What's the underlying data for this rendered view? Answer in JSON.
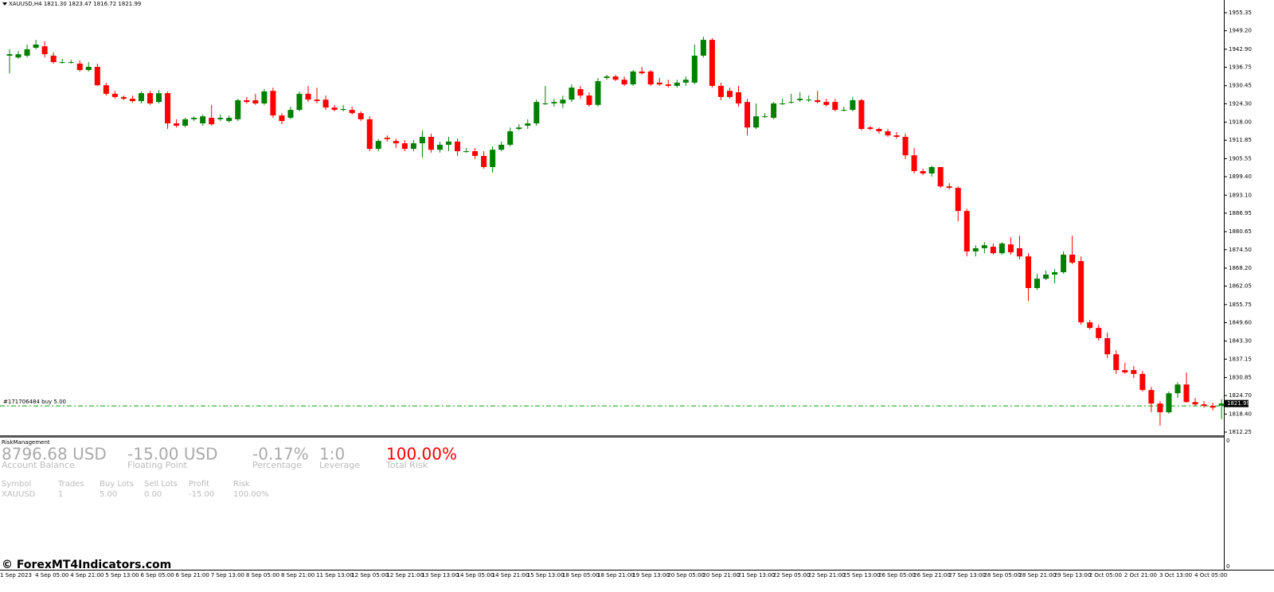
{
  "chart_data": {
    "type": "candlestick",
    "title": "XAUUSD,H4",
    "ohlc_labels": [
      "1821.30",
      "1823.47",
      "1816.72",
      "1821.99"
    ],
    "up_color": "#008000",
    "down_color": "#ff0000",
    "categories": [
      "1 Sep 2023",
      null,
      null,
      null,
      "4 Sep 05:00",
      null,
      null,
      null,
      "4 Sep 21:00",
      null,
      null,
      null,
      "5 Sep 13:00",
      null,
      null,
      null,
      "6 Sep 05:00",
      null,
      null,
      null,
      "6 Sep 21:00",
      null,
      null,
      null,
      "7 Sep 13:00",
      null,
      null,
      null,
      "8 Sep 05:00",
      null,
      null,
      null,
      "8 Sep 21:00",
      null,
      null,
      null,
      "11 Sep 13:00",
      null,
      null,
      null,
      "12 Sep 05:00",
      null,
      null,
      null,
      "12 Sep 21:00",
      null,
      null,
      null,
      "13 Sep 13:00",
      null,
      null,
      null,
      "14 Sep 05:00",
      null,
      null,
      null,
      "14 Sep 21:00",
      null,
      null,
      null,
      "15 Sep 13:00",
      null,
      null,
      null,
      "18 Sep 05:00",
      null,
      null,
      null,
      "18 Sep 21:00",
      null,
      null,
      null,
      "19 Sep 13:00",
      null,
      null,
      null,
      "20 Sep 05:00",
      null,
      null,
      null,
      "20 Sep 21:00",
      null,
      null,
      null,
      "21 Sep 13:00",
      null,
      null,
      null,
      "22 Sep 05:00",
      null,
      null,
      null,
      "22 Sep 21:00",
      null,
      null,
      null,
      "25 Sep 13:00",
      null,
      null,
      null,
      "26 Sep 05:00",
      null,
      null,
      null,
      "26 Sep 21:00",
      null,
      null,
      null,
      "27 Sep 13:00",
      null,
      null,
      null,
      "28 Sep 05:00",
      null,
      null,
      null,
      "28 Sep 21:00",
      null,
      null,
      null,
      "29 Sep 13:00",
      null,
      null,
      null,
      "2 Oct 05:00",
      null,
      null,
      null,
      "2 Oct 21:00",
      null,
      null,
      null,
      "3 Oct 13:00",
      null,
      null,
      null,
      "4 Oct 05:00",
      null,
      null
    ],
    "open": [
      1940.7,
      1940.1,
      1940.7,
      1943.4,
      1943.9,
      1940.7,
      1938.5,
      1938.5,
      1938.0,
      1935.8,
      1936.9,
      1930.6,
      1927.7,
      1926.6,
      1926.0,
      1925.2,
      1927.9,
      1924.9,
      1927.9,
      1917.6,
      1916.8,
      1919.0,
      1917.6,
      1919.5,
      1919.0,
      1918.4,
      1919.0,
      1925.5,
      1925.5,
      1924.4,
      1928.7,
      1920.3,
      1919.5,
      1922.2,
      1927.7,
      1925.7,
      1925.7,
      1923.0,
      1922.2,
      1922.2,
      1921.1,
      1919.0,
      1908.9,
      1912.7,
      1911.6,
      1910.8,
      1908.9,
      1910.8,
      1913.0,
      1908.6,
      1910.3,
      1911.4,
      1908.1,
      1908.1,
      1906.5,
      1902.7,
      1908.6,
      1910.3,
      1915.7,
      1916.8,
      1917.6,
      1924.4,
      1924.4,
      1924.4,
      1925.7,
      1929.3,
      1927.1,
      1923.9,
      1933.1,
      1933.6,
      1932.5,
      1930.9,
      1935.3,
      1935.3,
      1931.5,
      1930.9,
      1930.4,
      1931.5,
      1931.5,
      1940.7,
      1946.1,
      1930.4,
      1928.7,
      1928.2,
      1924.9,
      1916.2,
      1920.0,
      1919.5,
      1924.4,
      1924.9,
      1925.5,
      1925.7,
      1925.5,
      1924.9,
      1924.9,
      1922.2,
      1922.2,
      1925.5,
      1916.2,
      1915.7,
      1914.9,
      1913.5,
      1913.0,
      1906.7,
      1901.3,
      1900.5,
      1902.7,
      1896.1,
      1895.6,
      1887.7,
      1873.9,
      1875.0,
      1875.5,
      1873.3,
      1876.3,
      1875.0,
      1872.2,
      1861.4,
      1864.6,
      1866.0,
      1866.8,
      1872.8,
      1870.6,
      1849.7,
      1847.8,
      1844.3,
      1838.8,
      1833.4,
      1833.4,
      1832.1,
      1826.6,
      1822.0,
      1819.0,
      1825.5,
      1828.5,
      1822.5,
      1821.7,
      1821.2,
      1821.3
    ],
    "high": [
      1942.9,
      1942.3,
      1944.5,
      1946.1,
      1945.6,
      1941.8,
      1939.6,
      1939.3,
      1939.1,
      1938.5,
      1938.0,
      1931.5,
      1928.7,
      1927.1,
      1927.1,
      1928.5,
      1928.7,
      1929.0,
      1928.5,
      1919.0,
      1919.5,
      1920.0,
      1920.6,
      1923.9,
      1920.6,
      1920.3,
      1926.0,
      1926.6,
      1927.7,
      1929.3,
      1929.8,
      1921.1,
      1923.3,
      1928.5,
      1930.4,
      1929.8,
      1927.1,
      1923.9,
      1923.9,
      1923.3,
      1921.7,
      1920.0,
      1912.2,
      1913.5,
      1912.4,
      1911.9,
      1911.9,
      1915.2,
      1914.1,
      1911.4,
      1913.0,
      1912.4,
      1909.2,
      1909.2,
      1908.1,
      1909.7,
      1911.4,
      1916.2,
      1917.3,
      1919.0,
      1925.7,
      1930.4,
      1926.0,
      1927.1,
      1930.9,
      1930.4,
      1928.2,
      1933.1,
      1934.2,
      1934.2,
      1933.6,
      1935.8,
      1936.9,
      1935.8,
      1933.1,
      1932.5,
      1932.5,
      1933.6,
      1944.5,
      1947.2,
      1946.7,
      1931.5,
      1929.8,
      1930.4,
      1926.0,
      1924.4,
      1921.1,
      1924.9,
      1926.0,
      1927.7,
      1928.2,
      1927.1,
      1928.7,
      1926.0,
      1926.0,
      1923.3,
      1926.6,
      1926.0,
      1916.8,
      1916.2,
      1915.7,
      1914.6,
      1914.1,
      1909.2,
      1902.1,
      1903.2,
      1902.7,
      1897.2,
      1896.1,
      1888.5,
      1876.0,
      1877.1,
      1876.6,
      1877.1,
      1878.8,
      1879.3,
      1873.3,
      1866.3,
      1867.4,
      1867.9,
      1873.9,
      1879.3,
      1872.2,
      1850.5,
      1848.9,
      1846.2,
      1840.2,
      1835.9,
      1834.8,
      1833.1,
      1827.7,
      1822.8,
      1826.1,
      1829.3,
      1832.6,
      1823.9,
      1822.8,
      1822.3,
      1823.47
    ],
    "low": [
      1934.7,
      1939.6,
      1940.1,
      1942.9,
      1940.1,
      1938.0,
      1938.0,
      1938.0,
      1935.3,
      1935.3,
      1930.4,
      1927.1,
      1926.0,
      1925.5,
      1924.7,
      1924.4,
      1923.9,
      1924.4,
      1915.7,
      1916.2,
      1916.2,
      1918.4,
      1916.8,
      1916.8,
      1918.4,
      1917.9,
      1918.4,
      1924.4,
      1923.9,
      1923.9,
      1919.5,
      1917.3,
      1919.0,
      1921.7,
      1924.9,
      1924.4,
      1922.2,
      1921.7,
      1921.7,
      1920.6,
      1918.4,
      1908.1,
      1908.1,
      1911.4,
      1909.2,
      1908.1,
      1908.1,
      1905.9,
      1907.6,
      1907.6,
      1908.1,
      1906.5,
      1907.6,
      1905.4,
      1902.1,
      1900.8,
      1908.1,
      1909.7,
      1915.2,
      1915.7,
      1916.8,
      1923.9,
      1923.3,
      1922.8,
      1924.9,
      1926.0,
      1923.3,
      1923.3,
      1932.5,
      1932.0,
      1930.4,
      1930.4,
      1934.2,
      1930.4,
      1930.4,
      1929.8,
      1929.8,
      1930.4,
      1930.9,
      1940.1,
      1929.8,
      1925.5,
      1926.0,
      1923.3,
      1913.5,
      1915.7,
      1919.5,
      1919.0,
      1923.9,
      1924.4,
      1924.9,
      1924.9,
      1924.4,
      1923.3,
      1921.7,
      1921.7,
      1921.7,
      1915.2,
      1915.2,
      1914.1,
      1913.0,
      1912.4,
      1905.4,
      1900.5,
      1899.9,
      1899.4,
      1895.6,
      1895.1,
      1884.2,
      1872.2,
      1872.2,
      1873.3,
      1872.8,
      1872.8,
      1872.8,
      1871.2,
      1857.0,
      1860.8,
      1864.1,
      1863.0,
      1866.3,
      1869.5,
      1848.9,
      1847.3,
      1843.5,
      1837.5,
      1832.1,
      1832.1,
      1830.7,
      1826.1,
      1819.0,
      1814.4,
      1818.5,
      1823.9,
      1822.3,
      1821.2,
      1820.6,
      1819.6,
      1816.72
    ],
    "close": [
      1941.2,
      1941.2,
      1942.9,
      1944.5,
      1941.2,
      1938.5,
      1938.5,
      1938.5,
      1935.8,
      1936.9,
      1930.6,
      1927.7,
      1926.6,
      1926.0,
      1925.2,
      1927.9,
      1924.4,
      1927.9,
      1917.6,
      1916.8,
      1919.0,
      1919.5,
      1920.0,
      1917.3,
      1919.5,
      1919.5,
      1925.5,
      1924.9,
      1924.4,
      1928.5,
      1920.3,
      1918.4,
      1922.2,
      1927.7,
      1925.7,
      1925.2,
      1923.0,
      1922.2,
      1922.5,
      1921.1,
      1919.0,
      1908.9,
      1911.6,
      1912.2,
      1910.8,
      1908.9,
      1910.8,
      1913.0,
      1908.6,
      1910.3,
      1911.4,
      1908.1,
      1908.1,
      1906.5,
      1902.7,
      1908.6,
      1910.3,
      1914.9,
      1916.2,
      1917.6,
      1924.9,
      1924.4,
      1924.9,
      1925.7,
      1929.8,
      1927.1,
      1923.9,
      1932.0,
      1933.6,
      1932.5,
      1930.9,
      1935.3,
      1934.7,
      1930.9,
      1930.9,
      1930.4,
      1931.5,
      1932.5,
      1940.7,
      1946.1,
      1930.4,
      1926.6,
      1926.6,
      1924.4,
      1916.2,
      1920.0,
      1920.0,
      1924.4,
      1924.4,
      1924.9,
      1926.0,
      1925.7,
      1924.9,
      1923.9,
      1922.2,
      1922.2,
      1925.5,
      1915.7,
      1915.7,
      1914.9,
      1913.5,
      1913.0,
      1906.7,
      1901.3,
      1900.5,
      1902.7,
      1896.1,
      1895.6,
      1887.7,
      1873.9,
      1875.0,
      1876.0,
      1873.3,
      1876.6,
      1873.6,
      1872.2,
      1861.4,
      1864.6,
      1866.0,
      1866.8,
      1872.8,
      1870.1,
      1849.7,
      1847.8,
      1844.3,
      1838.8,
      1833.4,
      1832.6,
      1832.1,
      1826.6,
      1822.0,
      1819.0,
      1825.5,
      1828.5,
      1822.5,
      1821.7,
      1821.2,
      1820.6,
      1821.99
    ],
    "ylim": [
      1810.9,
      1959.7
    ],
    "yticks": [
      1955.35,
      {
        "value": 1949.2,
        "label": "1949.20"
      },
      {
        "value": 1942.9,
        "label": "1942.90"
      },
      1936.75,
      1930.45,
      {
        "value": 1924.3,
        "label": "1924.30"
      },
      {
        "value": 1918,
        "label": "1918.00"
      },
      1911.85,
      1905.55,
      {
        "value": 1899.4,
        "label": "1899.40"
      },
      {
        "value": 1893.1,
        "label": "1893.10"
      },
      1886.95,
      1880.65,
      {
        "value": 1874.5,
        "label": "1874.50"
      },
      {
        "value": 1868.2,
        "label": "1868.20"
      },
      1862.05,
      1855.75,
      {
        "value": 1849.6,
        "label": "1849.60"
      },
      {
        "value": 1843.3,
        "label": "1843.30"
      },
      1837.15,
      1830.85,
      {
        "value": 1824.7,
        "label": "1824.70"
      },
      {
        "value": 1818.4,
        "label": "1818.40"
      },
      1812.25
    ],
    "trade": {
      "label": "#171706484 buy 5.00",
      "price": 1821.2,
      "color": "#00a000"
    }
  },
  "risk_panel": {
    "title": "RiskManagement",
    "axis_labels": [
      "0",
      "0"
    ],
    "summary": [
      {
        "value": "8796.68 USD",
        "label": "Account Balance"
      },
      {
        "value": "-15.00 USD",
        "label": "Floating Point"
      },
      {
        "value": "-0.17%",
        "label": "Percentage"
      },
      {
        "value": "1:0",
        "label": "Leverage"
      },
      {
        "value": "100.00%",
        "label": "Total Risk"
      }
    ],
    "table": {
      "header": [
        "Symbol",
        "Trades",
        "Buy Lots",
        "Sell Lots",
        "Profit",
        "Risk"
      ],
      "rows": [
        [
          "XAUUSD",
          "1",
          "5.00",
          "0.00",
          "-15.00",
          "100.00%"
        ]
      ]
    }
  },
  "watermark": "© ForexMT4Indicators.com"
}
